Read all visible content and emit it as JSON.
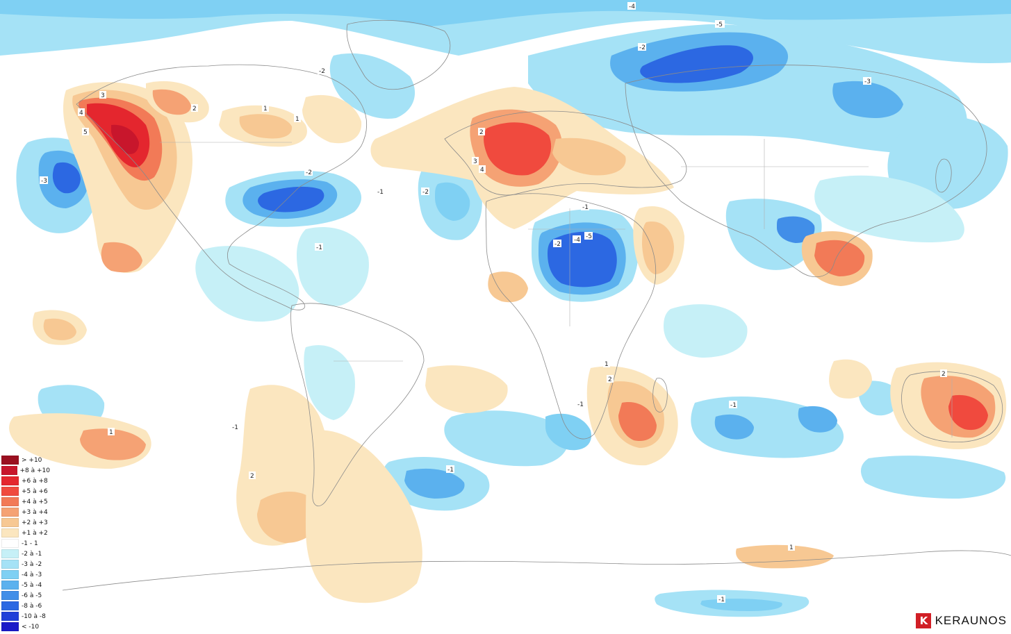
{
  "legend": {
    "items": [
      {
        "label": "> +10",
        "color": "#9b1020"
      },
      {
        "label": "+8 à +10",
        "color": "#c8162c"
      },
      {
        "label": "+6 à +8",
        "color": "#e4262e"
      },
      {
        "label": "+5 à +6",
        "color": "#f04a3e"
      },
      {
        "label": "+4 à +5",
        "color": "#f27a57"
      },
      {
        "label": "+3 à +4",
        "color": "#f5a274"
      },
      {
        "label": "+2 à +3",
        "color": "#f7c893"
      },
      {
        "label": "+1 à +2",
        "color": "#fbe6bf"
      },
      {
        "label": "-1 - 1",
        "color": "#ffffff"
      },
      {
        "label": "-2 à -1",
        "color": "#c6f0f7"
      },
      {
        "label": "-3 à -2",
        "color": "#a5e2f6"
      },
      {
        "label": "-4 à -3",
        "color": "#7fd0f3"
      },
      {
        "label": "-5 à -4",
        "color": "#5bb1ee"
      },
      {
        "label": "-6 à -5",
        "color": "#418ee8"
      },
      {
        "label": "-8 à -6",
        "color": "#2c68e2"
      },
      {
        "label": "-10 à -8",
        "color": "#2040d8"
      },
      {
        "label": "< -10",
        "color": "#1a1ac8"
      }
    ]
  },
  "contour_labels": [
    "-4",
    "-5",
    "-2",
    "-3",
    "-2",
    "3",
    "4",
    "5",
    "1",
    "-3",
    "2",
    "-2",
    "-1",
    "2",
    "3",
    "4",
    "-2",
    "-1",
    "-4",
    "-5",
    "-2",
    "-1",
    "1",
    "2",
    "-1",
    "-1",
    "1",
    "1",
    "2",
    "-1",
    "1",
    "-1",
    "-1",
    "2"
  ],
  "brand": {
    "logo_letter": "K",
    "name": "KERAUNOS",
    "logo_color": "#d11f26"
  },
  "colors": {
    "coastline": "#8a8a8a",
    "border": "#b0b0b0",
    "cold_contour": "#1a3fd6",
    "warm_contour": "#c0392b"
  }
}
